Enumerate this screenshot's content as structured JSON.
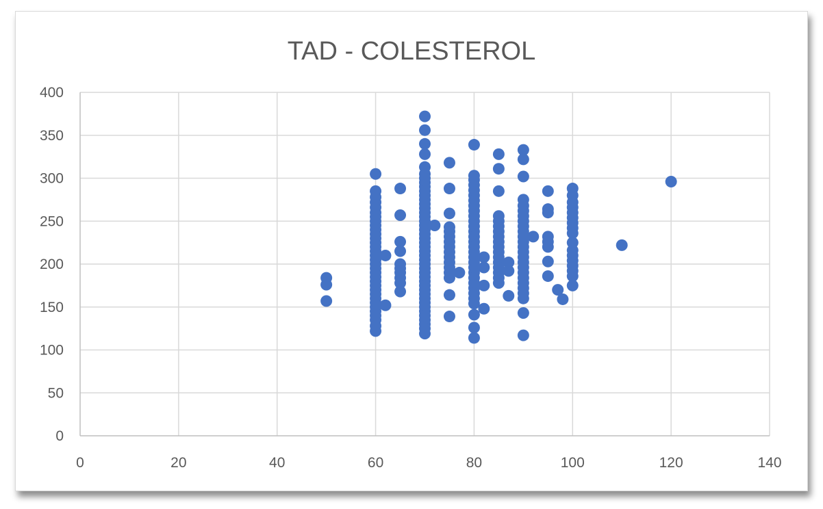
{
  "chart_data": {
    "type": "scatter",
    "title": "TAD - COLESTEROL",
    "xlabel": "",
    "ylabel": "",
    "xlim": [
      0,
      140
    ],
    "ylim": [
      0,
      400
    ],
    "x_ticks": [
      0,
      20,
      40,
      60,
      80,
      100,
      120,
      140
    ],
    "y_ticks": [
      0,
      50,
      100,
      150,
      200,
      250,
      300,
      350,
      400
    ],
    "x_tick_labels": [
      "0",
      "20",
      "40",
      "60",
      "80",
      "100",
      "120",
      "140"
    ],
    "y_tick_labels": [
      "0",
      "50",
      "100",
      "150",
      "200",
      "250",
      "300",
      "350",
      "400"
    ],
    "grid": true,
    "legend": "none",
    "marker_color": "#4472c4",
    "gridline_color": "#d9d9d9",
    "axis_color": "#bfbfbf",
    "series": [
      {
        "points": [
          [
            50,
            184
          ],
          [
            50,
            176
          ],
          [
            50,
            157
          ],
          [
            60,
            305
          ],
          [
            60,
            285
          ],
          [
            60,
            278
          ],
          [
            60,
            272
          ],
          [
            60,
            266
          ],
          [
            60,
            260
          ],
          [
            60,
            255
          ],
          [
            60,
            250
          ],
          [
            60,
            245
          ],
          [
            60,
            240
          ],
          [
            60,
            235
          ],
          [
            60,
            230
          ],
          [
            60,
            225
          ],
          [
            60,
            220
          ],
          [
            60,
            215
          ],
          [
            60,
            210
          ],
          [
            60,
            205
          ],
          [
            60,
            200
          ],
          [
            60,
            195
          ],
          [
            60,
            190
          ],
          [
            60,
            185
          ],
          [
            60,
            180
          ],
          [
            60,
            175
          ],
          [
            60,
            170
          ],
          [
            60,
            165
          ],
          [
            60,
            160
          ],
          [
            60,
            155
          ],
          [
            60,
            150
          ],
          [
            60,
            145
          ],
          [
            60,
            140
          ],
          [
            60,
            135
          ],
          [
            60,
            128
          ],
          [
            60,
            122
          ],
          [
            62,
            210
          ],
          [
            62,
            152
          ],
          [
            65,
            288
          ],
          [
            65,
            257
          ],
          [
            65,
            226
          ],
          [
            65,
            215
          ],
          [
            65,
            200
          ],
          [
            65,
            195
          ],
          [
            65,
            190
          ],
          [
            65,
            184
          ],
          [
            65,
            178
          ],
          [
            65,
            168
          ],
          [
            70,
            372
          ],
          [
            70,
            356
          ],
          [
            70,
            340
          ],
          [
            70,
            328
          ],
          [
            70,
            313
          ],
          [
            70,
            305
          ],
          [
            70,
            300
          ],
          [
            70,
            295
          ],
          [
            70,
            290
          ],
          [
            70,
            285
          ],
          [
            70,
            280
          ],
          [
            70,
            275
          ],
          [
            70,
            270
          ],
          [
            70,
            265
          ],
          [
            70,
            260
          ],
          [
            70,
            255
          ],
          [
            70,
            250
          ],
          [
            70,
            245
          ],
          [
            70,
            240
          ],
          [
            70,
            235
          ],
          [
            70,
            230
          ],
          [
            70,
            225
          ],
          [
            70,
            220
          ],
          [
            70,
            215
          ],
          [
            70,
            210
          ],
          [
            70,
            205
          ],
          [
            70,
            200
          ],
          [
            70,
            195
          ],
          [
            70,
            190
          ],
          [
            70,
            185
          ],
          [
            70,
            180
          ],
          [
            70,
            175
          ],
          [
            70,
            170
          ],
          [
            70,
            165
          ],
          [
            70,
            160
          ],
          [
            70,
            155
          ],
          [
            70,
            150
          ],
          [
            70,
            145
          ],
          [
            70,
            140
          ],
          [
            70,
            135
          ],
          [
            70,
            130
          ],
          [
            70,
            125
          ],
          [
            70,
            119
          ],
          [
            72,
            245
          ],
          [
            75,
            318
          ],
          [
            75,
            288
          ],
          [
            75,
            259
          ],
          [
            75,
            243
          ],
          [
            75,
            238
          ],
          [
            75,
            232
          ],
          [
            75,
            226
          ],
          [
            75,
            220
          ],
          [
            75,
            214
          ],
          [
            75,
            208
          ],
          [
            75,
            202
          ],
          [
            75,
            196
          ],
          [
            75,
            190
          ],
          [
            75,
            184
          ],
          [
            75,
            164
          ],
          [
            75,
            139
          ],
          [
            77,
            190
          ],
          [
            80,
            339
          ],
          [
            80,
            303
          ],
          [
            80,
            298
          ],
          [
            80,
            292
          ],
          [
            80,
            286
          ],
          [
            80,
            280
          ],
          [
            80,
            274
          ],
          [
            80,
            268
          ],
          [
            80,
            262
          ],
          [
            80,
            256
          ],
          [
            80,
            250
          ],
          [
            80,
            244
          ],
          [
            80,
            238
          ],
          [
            80,
            232
          ],
          [
            80,
            226
          ],
          [
            80,
            220
          ],
          [
            80,
            214
          ],
          [
            80,
            208
          ],
          [
            80,
            202
          ],
          [
            80,
            196
          ],
          [
            80,
            190
          ],
          [
            80,
            184
          ],
          [
            80,
            178
          ],
          [
            80,
            172
          ],
          [
            80,
            166
          ],
          [
            80,
            160
          ],
          [
            80,
            154
          ],
          [
            80,
            141
          ],
          [
            80,
            126
          ],
          [
            80,
            114
          ],
          [
            82,
            208
          ],
          [
            82,
            196
          ],
          [
            82,
            175
          ],
          [
            82,
            148
          ],
          [
            85,
            328
          ],
          [
            85,
            311
          ],
          [
            85,
            285
          ],
          [
            85,
            256
          ],
          [
            85,
            250
          ],
          [
            85,
            244
          ],
          [
            85,
            238
          ],
          [
            85,
            232
          ],
          [
            85,
            226
          ],
          [
            85,
            220
          ],
          [
            85,
            214
          ],
          [
            85,
            208
          ],
          [
            85,
            202
          ],
          [
            85,
            196
          ],
          [
            85,
            190
          ],
          [
            85,
            184
          ],
          [
            85,
            178
          ],
          [
            87,
            202
          ],
          [
            87,
            192
          ],
          [
            87,
            163
          ],
          [
            90,
            333
          ],
          [
            90,
            322
          ],
          [
            90,
            302
          ],
          [
            90,
            275
          ],
          [
            90,
            268
          ],
          [
            90,
            262
          ],
          [
            90,
            256
          ],
          [
            90,
            250
          ],
          [
            90,
            244
          ],
          [
            90,
            238
          ],
          [
            90,
            232
          ],
          [
            90,
            226
          ],
          [
            90,
            220
          ],
          [
            90,
            214
          ],
          [
            90,
            208
          ],
          [
            90,
            202
          ],
          [
            90,
            196
          ],
          [
            90,
            190
          ],
          [
            90,
            184
          ],
          [
            90,
            178
          ],
          [
            90,
            172
          ],
          [
            90,
            166
          ],
          [
            90,
            160
          ],
          [
            90,
            143
          ],
          [
            90,
            117
          ],
          [
            92,
            232
          ],
          [
            95,
            285
          ],
          [
            95,
            264
          ],
          [
            95,
            260
          ],
          [
            95,
            232
          ],
          [
            95,
            226
          ],
          [
            95,
            220
          ],
          [
            95,
            203
          ],
          [
            95,
            186
          ],
          [
            97,
            170
          ],
          [
            98,
            159
          ],
          [
            100,
            288
          ],
          [
            100,
            280
          ],
          [
            100,
            272
          ],
          [
            100,
            266
          ],
          [
            100,
            260
          ],
          [
            100,
            254
          ],
          [
            100,
            248
          ],
          [
            100,
            242
          ],
          [
            100,
            236
          ],
          [
            100,
            225
          ],
          [
            100,
            216
          ],
          [
            100,
            210
          ],
          [
            100,
            204
          ],
          [
            100,
            198
          ],
          [
            100,
            192
          ],
          [
            100,
            186
          ],
          [
            100,
            175
          ],
          [
            110,
            222
          ],
          [
            120,
            296
          ]
        ]
      }
    ]
  }
}
